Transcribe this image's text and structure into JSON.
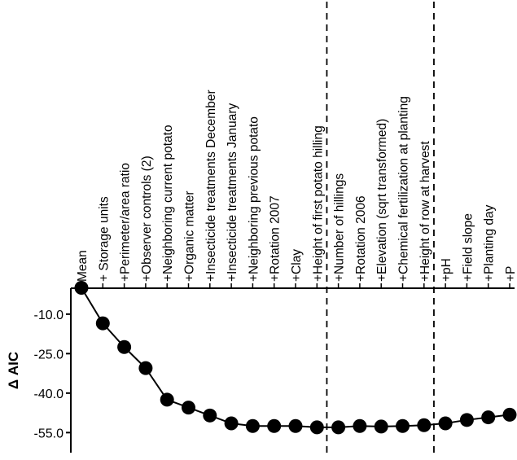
{
  "chart_data": {
    "type": "line",
    "title": "",
    "xlabel": "",
    "ylabel": "Δ AIC",
    "ylim": [
      -57,
      3
    ],
    "yticks": [
      -10.0,
      -25.0,
      -40.0,
      -55.0
    ],
    "ytick_labels": [
      "-10.0",
      "-25.0",
      "-40.0",
      "-55.0"
    ],
    "categories": [
      "Mean",
      "+ Storage units",
      "+Perimeter/area ratio",
      "+Observer controls (2)",
      "+Neighboring current potato",
      "+Organic matter",
      "+Insecticide treatments December",
      "+Insecticide treatments January",
      "+Neighboring previous potato",
      "+Rotation 2007",
      "+Clay",
      "+Height of first potato hilling",
      "+Number of hillings",
      "+Rotation 2006",
      "+Elevation (sqrt transformed)",
      "+Chemical fertilization at planting",
      "+Height of row at harvest",
      "+pH",
      "+Field slope",
      "+Planting day",
      "+P"
    ],
    "series": [
      {
        "values": [
          0,
          -13.5,
          -22.5,
          -30.5,
          -42.5,
          -45.5,
          -48.5,
          -51.5,
          -52.5,
          -52.5,
          -52.5,
          -53.0,
          -53.0,
          -52.5,
          -52.7,
          -52.5,
          -52.2,
          -51.5,
          -50.2,
          -49.2,
          -48.2
        ]
      }
    ],
    "reference_lines_after_index": [
      11,
      16
    ],
    "colors": {
      "marker": "#000000",
      "line": "#000000"
    }
  }
}
